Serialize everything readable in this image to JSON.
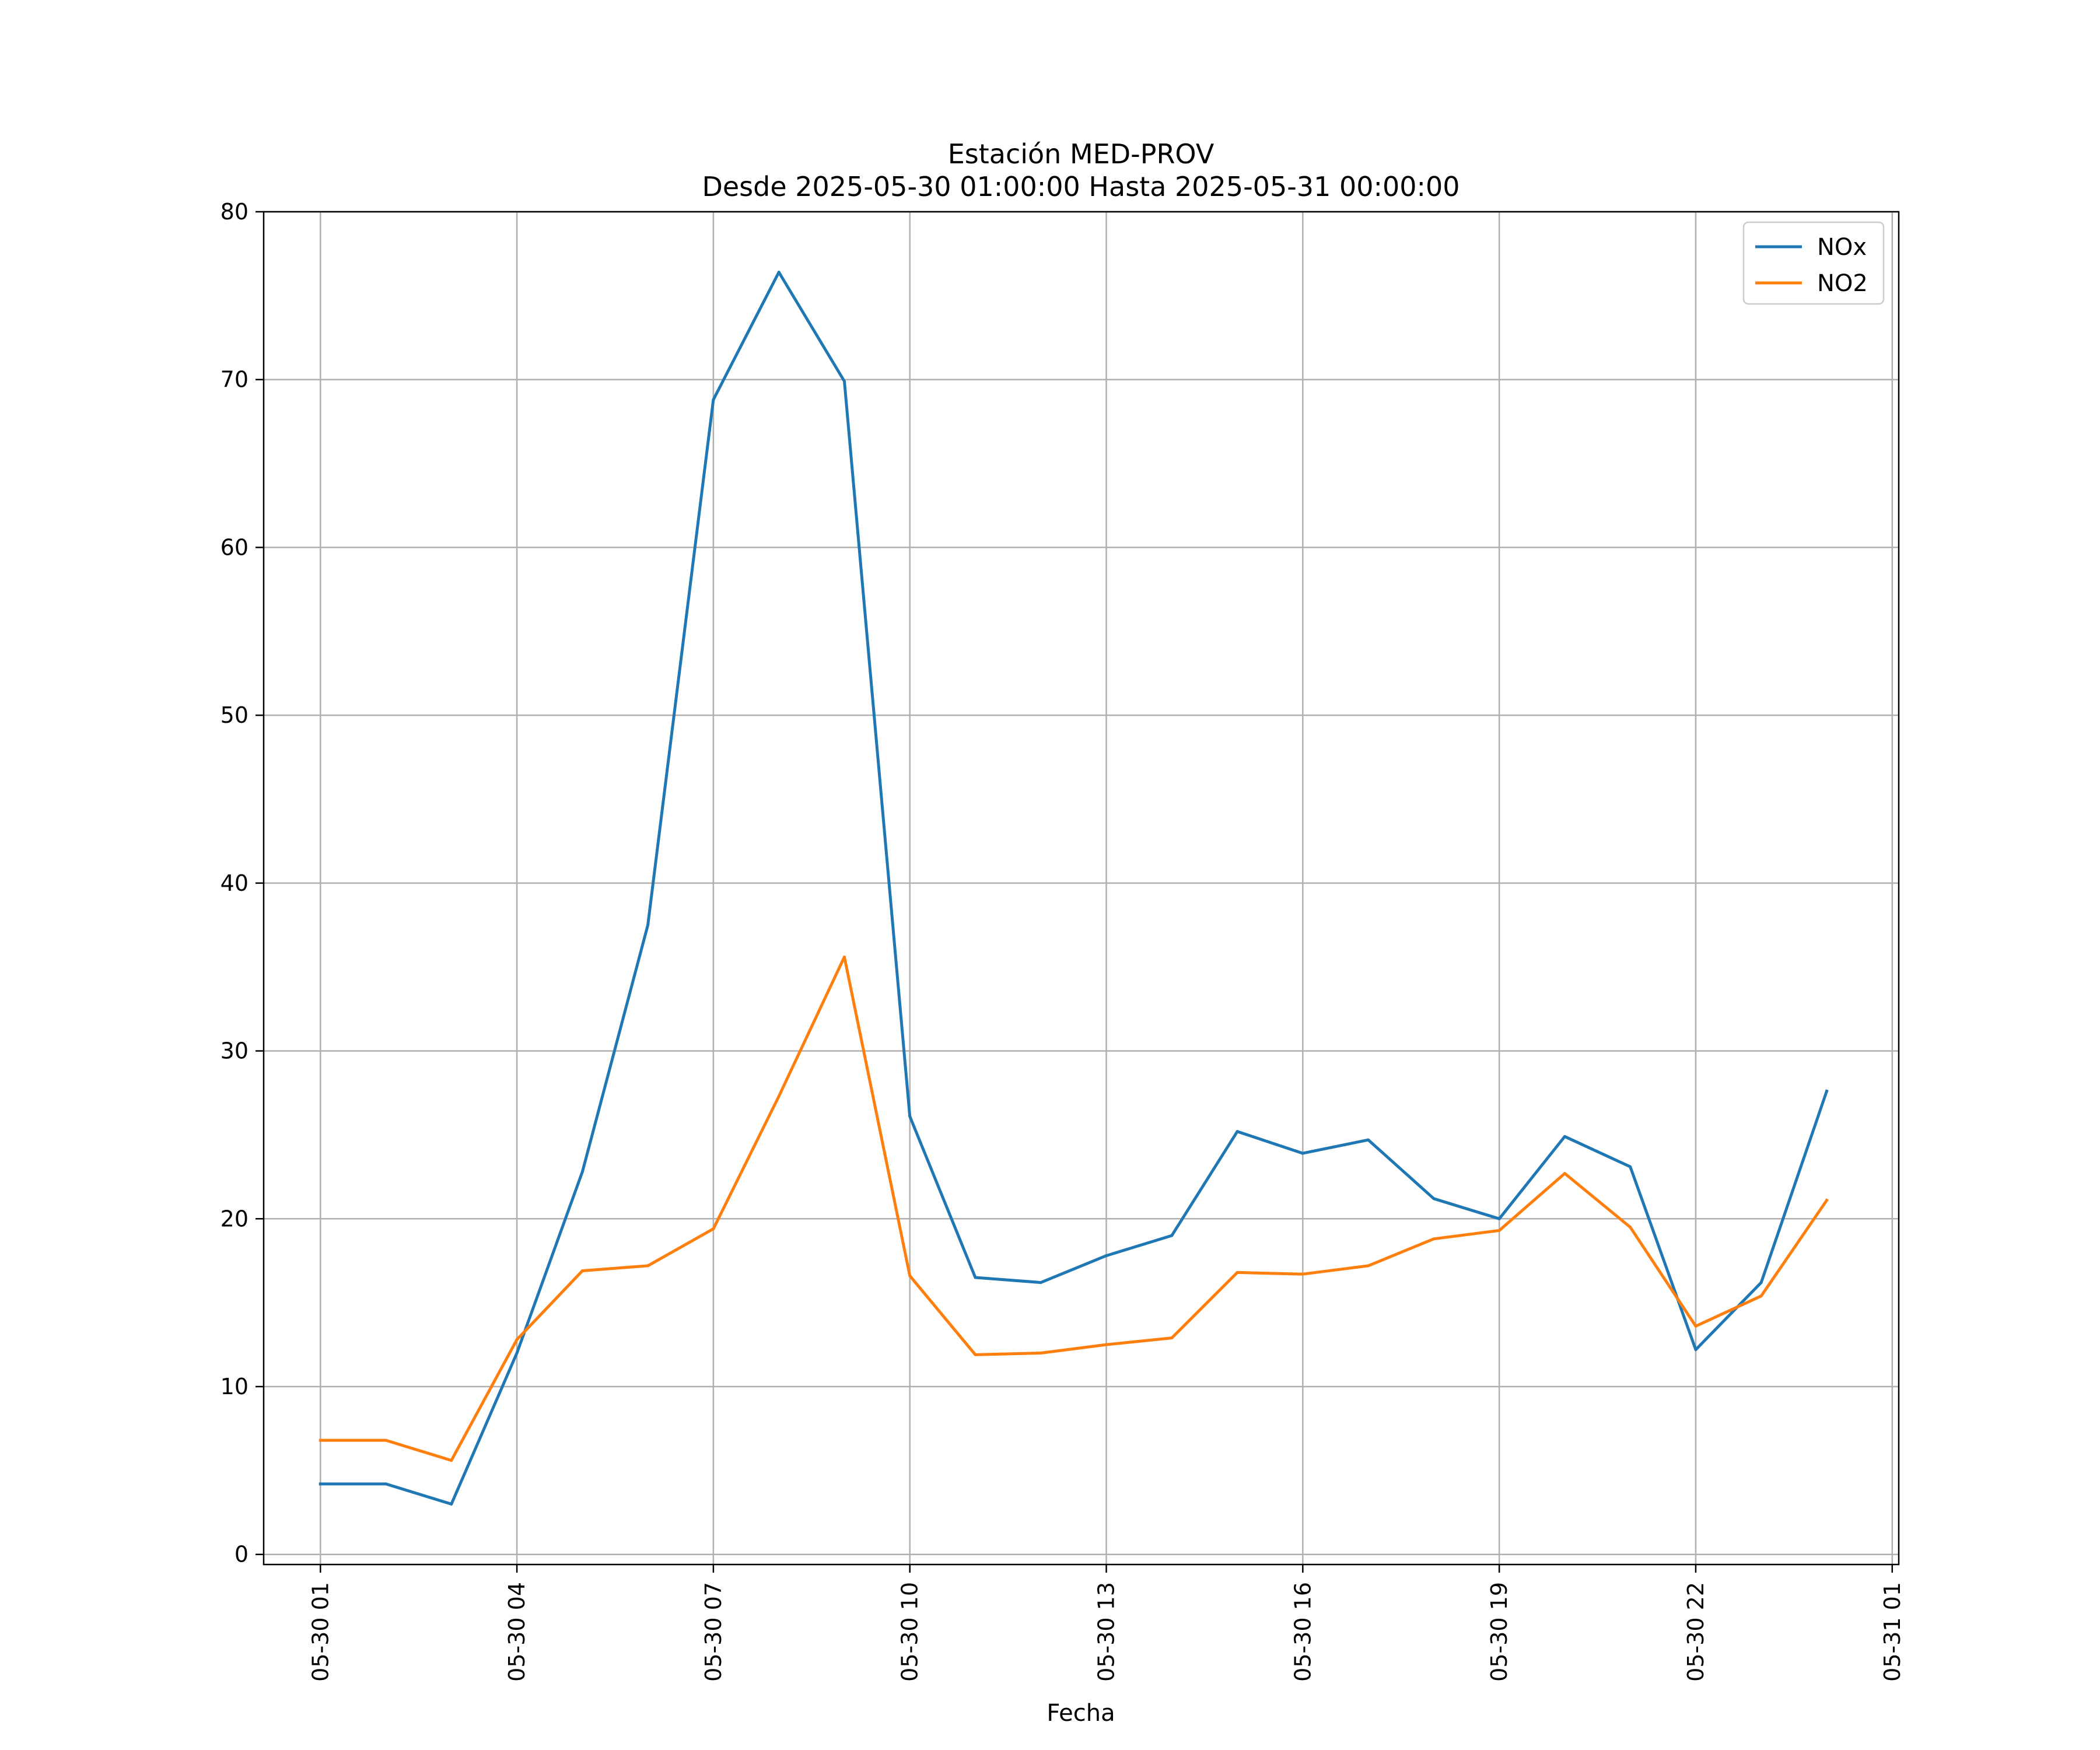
{
  "chart_data": {
    "type": "line",
    "title": "Estación MED-PROV",
    "subtitle": "Desde 2025-05-30 01:00:00 Hasta 2025-05-31 00:00:00",
    "xlabel": "Fecha",
    "ylabel": "",
    "x": [
      "05-30 01",
      "05-30 02",
      "05-30 03",
      "05-30 04",
      "05-30 05",
      "05-30 06",
      "05-30 07",
      "05-30 08",
      "05-30 09",
      "05-30 10",
      "05-30 11",
      "05-30 12",
      "05-30 13",
      "05-30 14",
      "05-30 15",
      "05-30 16",
      "05-30 17",
      "05-30 18",
      "05-30 19",
      "05-30 20",
      "05-30 21",
      "05-30 22",
      "05-30 23",
      "05-31 00"
    ],
    "x_ticks": [
      "05-30 01",
      "05-30 04",
      "05-30 07",
      "05-30 10",
      "05-30 13",
      "05-30 16",
      "05-30 19",
      "05-30 22",
      "05-31 01"
    ],
    "xlim": [
      "05-30 00:08",
      "05-31 01:06"
    ],
    "y_ticks": [
      0,
      10,
      20,
      30,
      40,
      50,
      60,
      70,
      80
    ],
    "ylim": [
      -0.6,
      80
    ],
    "grid": true,
    "legend_position": "top-right",
    "series": [
      {
        "name": "NOx",
        "color": "#1f77b4",
        "values": [
          4.2,
          4.2,
          3.0,
          12.0,
          22.8,
          37.5,
          68.8,
          76.4,
          69.9,
          26.1,
          16.5,
          16.2,
          17.8,
          19.0,
          25.2,
          23.9,
          24.7,
          21.2,
          20.0,
          24.9,
          23.1,
          12.2,
          16.2,
          27.6
        ]
      },
      {
        "name": "NO2",
        "color": "#ff7f0e",
        "values": [
          6.8,
          6.8,
          5.6,
          12.8,
          16.9,
          17.2,
          19.4,
          27.3,
          35.6,
          16.6,
          11.9,
          12.0,
          12.5,
          12.9,
          16.8,
          16.7,
          17.2,
          18.8,
          19.3,
          22.7,
          19.5,
          13.6,
          15.4,
          21.1
        ]
      }
    ]
  }
}
